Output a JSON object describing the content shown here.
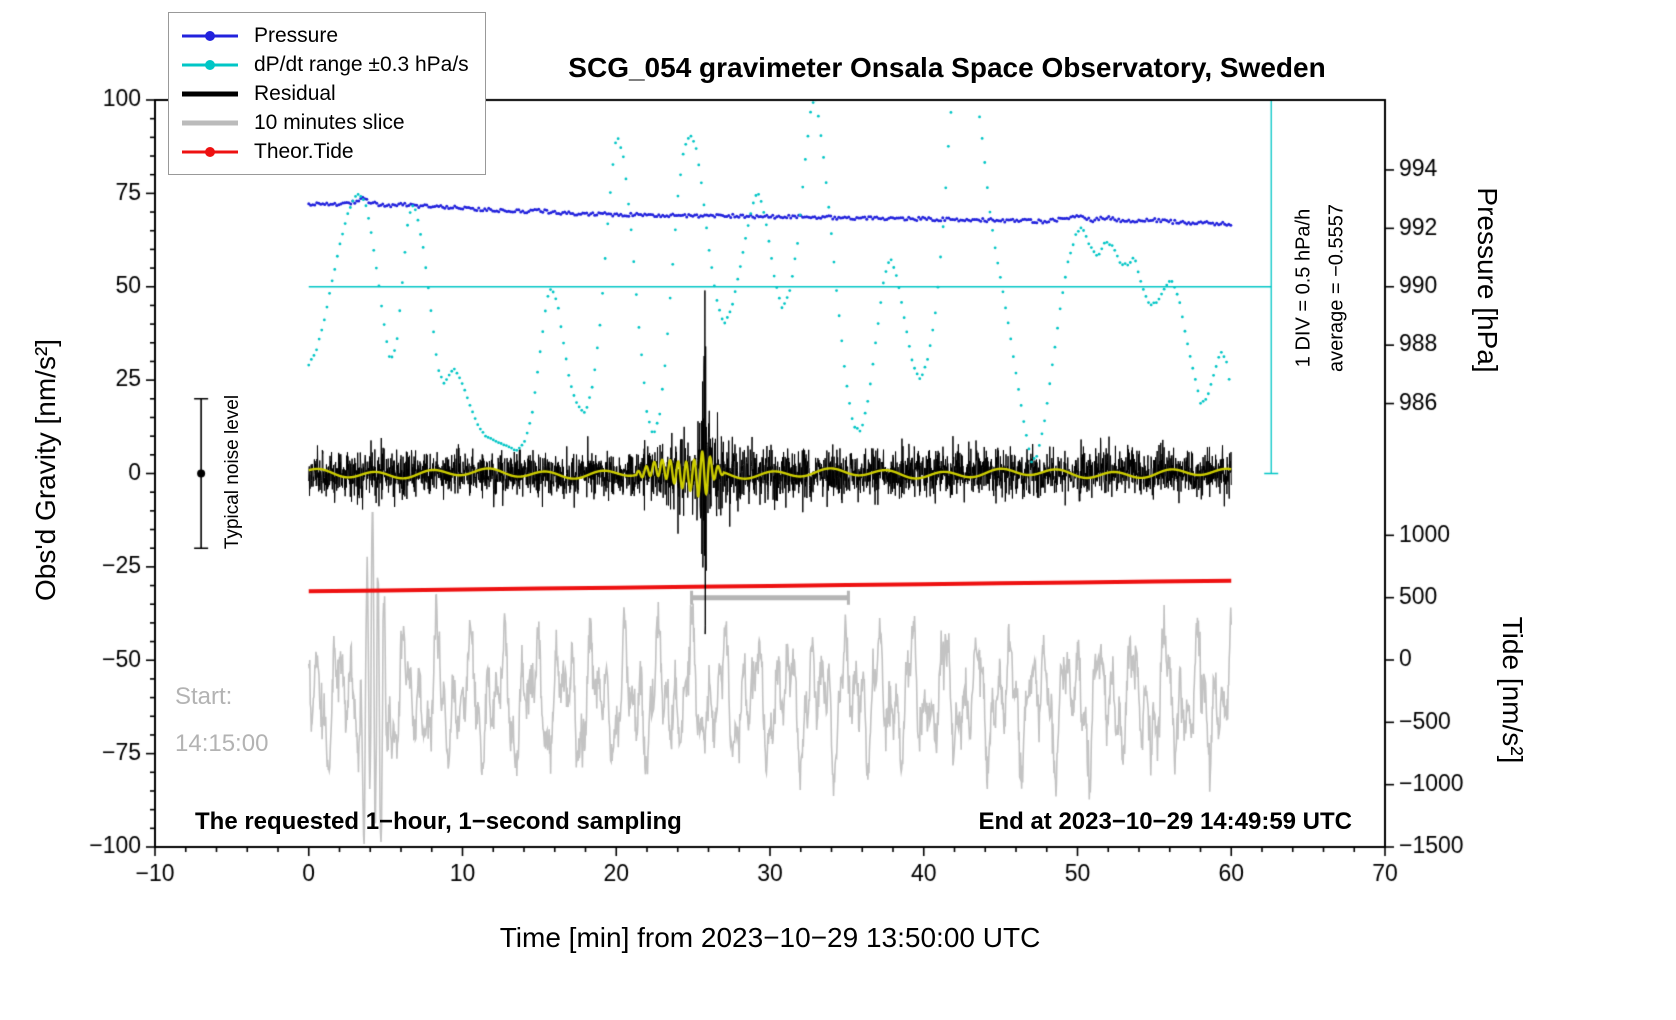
{
  "title": "SCG_054 gravimeter Onsala Space Observatory, Sweden",
  "legend": {
    "items": [
      {
        "label": "Pressure",
        "color": "#2222dd",
        "marker": "line-dot",
        "thick": false,
        "icon": "pressure-line-icon"
      },
      {
        "label": "dP/dt range ±0.3 hPa/s",
        "color": "#00c6c6",
        "marker": "line-dot",
        "thick": false,
        "icon": "dpdt-line-icon"
      },
      {
        "label": "Residual",
        "color": "#000000",
        "marker": "line",
        "thick": true,
        "icon": "residual-line-icon"
      },
      {
        "label": "10 minutes slice",
        "color": "#bbbbbb",
        "marker": "line",
        "thick": true,
        "icon": "slice-line-icon"
      },
      {
        "label": "Theor.Tide",
        "color": "#ee1111",
        "marker": "line-dot",
        "thick": false,
        "icon": "tide-line-icon"
      }
    ]
  },
  "annotations": {
    "start_label": "Start:",
    "start_time": "14:15:00",
    "bottom_left": "The requested 1−hour, 1−second sampling",
    "bottom_right": "End at 2023−10−29 14:49:59 UTC",
    "div_scale": "1 DIV = 0.5 hPa/h",
    "average": "average = −0.5557",
    "noise_level": "Typical noise level"
  },
  "axes": {
    "x": {
      "label": "Time [min] from 2023−10−29 13:50:00 UTC",
      "min": -10,
      "max": 70,
      "ticks": [
        -10,
        0,
        10,
        20,
        30,
        40,
        50,
        60,
        70
      ],
      "minor_step": 2
    },
    "y_left": {
      "label": "Obs'd Gravity [nm/s²]",
      "min": -100,
      "max": 100,
      "ticks": [
        100,
        75,
        50,
        25,
        0,
        -25,
        -50,
        -75,
        -100
      ],
      "minor_step": 5
    },
    "y_right_pressure": {
      "label": "Pressure [hPa]",
      "ticks": [
        994,
        992,
        990,
        988,
        986
      ]
    },
    "y_right_tide": {
      "label": "Tide [nm/s²]",
      "ticks": [
        1000,
        500,
        0,
        -500,
        -1000,
        -1500
      ]
    }
  },
  "chart_data": {
    "type": "line",
    "title": "SCG_054 gravimeter Onsala Space Observatory, Sweden",
    "xlabel": "Time [min] from 2023−10−29 13:50:00 UTC",
    "xlim": [
      -10,
      70
    ],
    "ylim_gravity": [
      -100,
      100
    ],
    "pressure_axis": {
      "units": "hPa",
      "reference_value": 990,
      "ticks": [
        994,
        992,
        990,
        988,
        986
      ]
    },
    "tide_axis": {
      "units": "nm/s²",
      "ticks": [
        1000,
        500,
        0,
        -500,
        -1000,
        -1500
      ]
    },
    "grid": false,
    "legend_position": "top-left",
    "reference_lines": {
      "dpdt_zero_line": {
        "axis": "gravity",
        "value": 50,
        "t_start": 0,
        "t_end": 62.6,
        "color": "#00c6c6"
      },
      "div_scale_bar": {
        "x_min": 62.6,
        "gravity_top": 100,
        "gravity_bottom": 0,
        "color": "#00c6c6",
        "label": "1 DIV = 0.5 hPa/h",
        "average": "average = −0.5557"
      }
    },
    "noise_errorbar": {
      "t": -7,
      "center": 0,
      "half_range": 20,
      "label": "Typical noise level"
    },
    "slice_indicator_bar": {
      "axis": "tide",
      "value": 500,
      "t_start": 24.9,
      "t_end": 35.1,
      "color": "#b5b5b5"
    },
    "series": [
      {
        "name": "Pressure",
        "axis": "pressure",
        "units": "hPa",
        "color": "#2222dd",
        "style": "fuzzy-dotted-line",
        "points": [
          [
            0,
            992.84
          ],
          [
            1,
            992.82
          ],
          [
            2,
            992.8
          ],
          [
            3,
            992.9
          ],
          [
            3.5,
            993.02
          ],
          [
            4,
            992.88
          ],
          [
            5,
            992.78
          ],
          [
            6,
            992.84
          ],
          [
            7,
            992.78
          ],
          [
            8,
            992.74
          ],
          [
            9,
            992.72
          ],
          [
            10,
            992.7
          ],
          [
            11,
            992.66
          ],
          [
            12,
            992.62
          ],
          [
            13,
            992.6
          ],
          [
            14,
            992.57
          ],
          [
            15,
            992.6
          ],
          [
            16,
            992.55
          ],
          [
            17,
            992.52
          ],
          [
            18,
            992.5
          ],
          [
            19,
            992.49
          ],
          [
            20,
            992.47
          ],
          [
            21,
            992.47
          ],
          [
            22,
            992.46
          ],
          [
            23,
            992.45
          ],
          [
            24,
            992.44
          ],
          [
            25,
            992.42
          ],
          [
            26,
            992.41
          ],
          [
            27,
            992.43
          ],
          [
            28,
            992.43
          ],
          [
            29,
            992.41
          ],
          [
            30,
            992.39
          ],
          [
            31,
            992.4
          ],
          [
            32,
            992.41
          ],
          [
            33,
            992.39
          ],
          [
            34,
            992.37
          ],
          [
            35,
            992.36
          ],
          [
            36,
            992.35
          ],
          [
            37,
            992.35
          ],
          [
            38,
            992.34
          ],
          [
            39,
            992.33
          ],
          [
            40,
            992.32
          ],
          [
            41,
            992.31
          ],
          [
            42,
            992.3
          ],
          [
            43,
            992.29
          ],
          [
            44,
            992.28
          ],
          [
            45,
            992.27
          ],
          [
            46,
            992.26
          ],
          [
            47,
            992.25
          ],
          [
            48,
            992.24
          ],
          [
            49,
            992.33
          ],
          [
            50,
            992.41
          ],
          [
            50.5,
            992.35
          ],
          [
            51,
            992.28
          ],
          [
            51.5,
            992.34
          ],
          [
            52,
            992.38
          ],
          [
            52.5,
            992.31
          ],
          [
            53,
            992.26
          ],
          [
            54,
            992.25
          ],
          [
            55,
            992.28
          ],
          [
            56,
            992.23
          ],
          [
            57,
            992.19
          ],
          [
            58,
            992.21
          ],
          [
            59,
            992.17
          ],
          [
            60,
            992.14
          ]
        ]
      },
      {
        "name": "dP/dt range ±0.3 hPa/s",
        "axis": "gravity-display",
        "color": "#00c6c6",
        "style": "dotted",
        "note": "plotted against left axis; horizontal line at 50 is the dP/dt reference, 1 DIV = 0.5 hPa/h, average = −0.5557 hPa/h",
        "points": [
          [
            0,
            29
          ],
          [
            0.5,
            33
          ],
          [
            1,
            41
          ],
          [
            1.5,
            51
          ],
          [
            2,
            61
          ],
          [
            2.5,
            69
          ],
          [
            3,
            74
          ],
          [
            3.3,
            75
          ],
          [
            3.7,
            72
          ],
          [
            4,
            66
          ],
          [
            4.5,
            52
          ],
          [
            5,
            37
          ],
          [
            5.3,
            30
          ],
          [
            5.7,
            34
          ],
          [
            6,
            47
          ],
          [
            6.4,
            66
          ],
          [
            6.7,
            72
          ],
          [
            7,
            70
          ],
          [
            7.5,
            59
          ],
          [
            8,
            42
          ],
          [
            8.4,
            28
          ],
          [
            8.8,
            24
          ],
          [
            9.2,
            27
          ],
          [
            9.5,
            28
          ],
          [
            10,
            24
          ],
          [
            10.5,
            18
          ],
          [
            11,
            13
          ],
          [
            11.5,
            10
          ],
          [
            12,
            9
          ],
          [
            12.5,
            8
          ],
          [
            13,
            7
          ],
          [
            13.5,
            6
          ],
          [
            14,
            8
          ],
          [
            14.5,
            15
          ],
          [
            15,
            31
          ],
          [
            15.5,
            47
          ],
          [
            15.8,
            50
          ],
          [
            16.2,
            45
          ],
          [
            16.6,
            34
          ],
          [
            17,
            24
          ],
          [
            17.5,
            18
          ],
          [
            18,
            16
          ],
          [
            18.5,
            24
          ],
          [
            19,
            42
          ],
          [
            19.5,
            70
          ],
          [
            19.9,
            88
          ],
          [
            20.1,
            90
          ],
          [
            20.5,
            84
          ],
          [
            21,
            64
          ],
          [
            21.5,
            38
          ],
          [
            22,
            16
          ],
          [
            22.4,
            10
          ],
          [
            22.8,
            15
          ],
          [
            23.2,
            30
          ],
          [
            23.6,
            52
          ],
          [
            24,
            74
          ],
          [
            24.4,
            87
          ],
          [
            24.8,
            91
          ],
          [
            25.2,
            87
          ],
          [
            25.6,
            76
          ],
          [
            26,
            61
          ],
          [
            26.5,
            47
          ],
          [
            27,
            40
          ],
          [
            27.5,
            44
          ],
          [
            28,
            54
          ],
          [
            28.5,
            65
          ],
          [
            29,
            74
          ],
          [
            29.3,
            75
          ],
          [
            29.8,
            66
          ],
          [
            30.3,
            52
          ],
          [
            30.8,
            44
          ],
          [
            31.3,
            49
          ],
          [
            31.8,
            62
          ],
          [
            32.3,
            84
          ],
          [
            32.7,
            99
          ],
          [
            33,
            100
          ],
          [
            33.4,
            88
          ],
          [
            33.9,
            68
          ],
          [
            34.4,
            46
          ],
          [
            34.9,
            26
          ],
          [
            35.4,
            13
          ],
          [
            35.9,
            11
          ],
          [
            36.4,
            20
          ],
          [
            36.9,
            36
          ],
          [
            37.4,
            52
          ],
          [
            37.8,
            58
          ],
          [
            38.3,
            52
          ],
          [
            38.8,
            40
          ],
          [
            39.3,
            29
          ],
          [
            39.8,
            25
          ],
          [
            40.3,
            31
          ],
          [
            40.8,
            44
          ],
          [
            41.3,
            68
          ],
          [
            41.7,
            94
          ],
          [
            42,
            106
          ],
          [
            42.3,
            112
          ],
          [
            42.6,
            108
          ],
          [
            42.9,
            103
          ],
          [
            43.2,
            107
          ],
          [
            43.5,
            100
          ],
          [
            43.9,
            86
          ],
          [
            44.3,
            70
          ],
          [
            44.7,
            59
          ],
          [
            45.1,
            50
          ],
          [
            45.5,
            40
          ],
          [
            46,
            27
          ],
          [
            46.5,
            14
          ],
          [
            47,
            3
          ],
          [
            47.4,
            5
          ],
          [
            47.9,
            15
          ],
          [
            48.4,
            30
          ],
          [
            48.9,
            45
          ],
          [
            49.4,
            57
          ],
          [
            49.9,
            64
          ],
          [
            50.3,
            66
          ],
          [
            50.8,
            61
          ],
          [
            51.3,
            58
          ],
          [
            51.8,
            62
          ],
          [
            52.3,
            61
          ],
          [
            52.8,
            56
          ],
          [
            53.3,
            56
          ],
          [
            53.7,
            58
          ],
          [
            54.2,
            50
          ],
          [
            54.7,
            45
          ],
          [
            55.2,
            46
          ],
          [
            55.7,
            50
          ],
          [
            56.1,
            52
          ],
          [
            56.6,
            47
          ],
          [
            57,
            38
          ],
          [
            57.5,
            28
          ],
          [
            58,
            19
          ],
          [
            58.4,
            20
          ],
          [
            58.9,
            27
          ],
          [
            59.3,
            33
          ],
          [
            59.7,
            30
          ],
          [
            60,
            21
          ]
        ]
      },
      {
        "name": "Residual",
        "axis": "gravity",
        "units": "nm/s²",
        "color": "#000000",
        "style": "noisy-line",
        "model": "zero-mean 1-second noise",
        "typical_band": [
          -8,
          8
        ],
        "event": {
          "onset_min": 21.5,
          "center_min": 25.78,
          "max": 49,
          "min": -43,
          "decay_end_min": 30
        }
      },
      {
        "name": "Smoothed residual",
        "axis": "gravity",
        "units": "nm/s²",
        "color": "#cdcd00",
        "style": "line",
        "model": "low-pass of residual, near 0, oscillation ±6 between 21.5 and 26.8 min"
      },
      {
        "name": "10 minutes slice",
        "axis": "tide",
        "color": "#c3c3c3",
        "style": "line",
        "window_min": [
          25,
          35
        ],
        "model": "magnified residual slice, center ≈ −300, typical swing ±650, burst ±1500 at plotted t≈3–5.5"
      },
      {
        "name": "Theor.Tide",
        "axis": "tide",
        "units": "nm/s²",
        "color": "#ee1111",
        "style": "thick-line",
        "points": [
          [
            0,
            552
          ],
          [
            5,
            558
          ],
          [
            10,
            566
          ],
          [
            15,
            573
          ],
          [
            20,
            580
          ],
          [
            25,
            588
          ],
          [
            30,
            594
          ],
          [
            35,
            601
          ],
          [
            40,
            608
          ],
          [
            45,
            615
          ],
          [
            50,
            622
          ],
          [
            55,
            629
          ],
          [
            60,
            635
          ]
        ]
      }
    ]
  }
}
